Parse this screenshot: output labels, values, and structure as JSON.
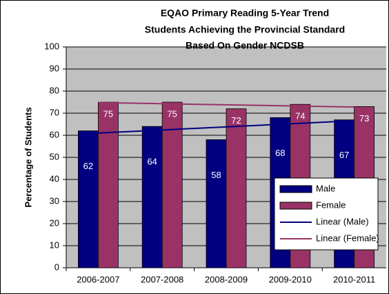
{
  "chart_data": {
    "type": "bar",
    "title": [
      "EQAO Primary Reading 5-Year Trend",
      "Students Achieving the Provincial Standard",
      "Based On Gender NCDSB"
    ],
    "y_label": "Percentage of Students",
    "categories": [
      "2006-2007",
      "2007-2008",
      "2008-2009",
      "2009-2010",
      "2010-2011"
    ],
    "series": [
      {
        "name": "Male",
        "color": "#000080",
        "values": [
          62,
          64,
          58,
          68,
          67
        ],
        "trendline": {
          "name": "Linear (Male)",
          "color": "#000080"
        }
      },
      {
        "name": "Female",
        "color": "#993366",
        "values": [
          75,
          75,
          72,
          74,
          73
        ],
        "trendline": {
          "name": "Linear (Female)",
          "color": "#993366"
        }
      }
    ],
    "ylim": [
      0,
      100
    ],
    "yticks": [
      0,
      10,
      20,
      30,
      40,
      50,
      60,
      70,
      80,
      90,
      100
    ],
    "grid": true,
    "legend": "lower right"
  }
}
